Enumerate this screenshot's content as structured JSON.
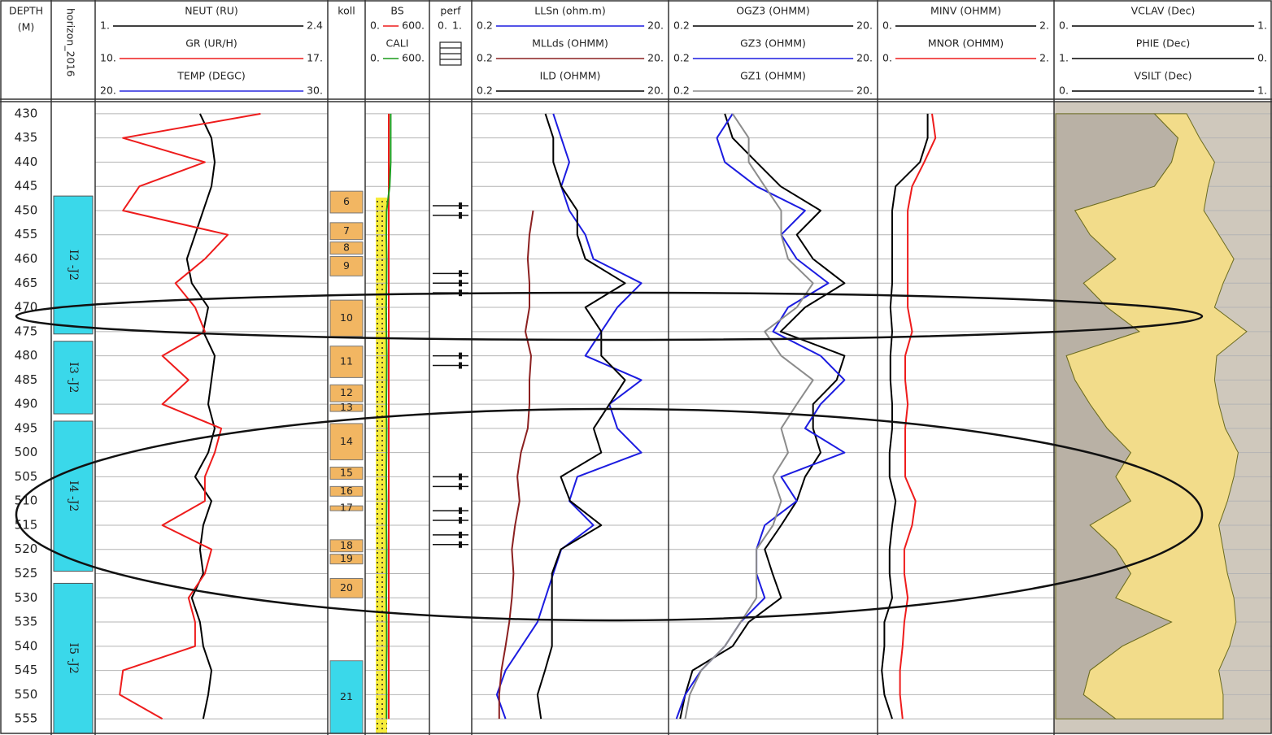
{
  "chart_data": {
    "type": "well-log",
    "ylabel": [
      "DEPTH",
      "(M)"
    ],
    "ylim": [
      427.5,
      558
    ],
    "yticks": [
      430,
      435,
      440,
      445,
      450,
      455,
      460,
      465,
      470,
      475,
      480,
      485,
      490,
      495,
      500,
      505,
      510,
      515,
      520,
      525,
      530,
      535,
      540,
      545,
      550,
      555
    ],
    "grid": true,
    "x": [
      430,
      435,
      440,
      445,
      450,
      455,
      460,
      465,
      470,
      475,
      480,
      485,
      490,
      495,
      500,
      505,
      510,
      515,
      520,
      525,
      530,
      535,
      540,
      545,
      550,
      555
    ],
    "zones_title": "horizon_2016",
    "zones": [
      {
        "label": "I2 -J2",
        "top": 447,
        "base": 475.5,
        "color": "#3ad8ea"
      },
      {
        "label": "I3 -J2",
        "top": 477,
        "base": 492,
        "color": "#3ad8ea"
      },
      {
        "label": "I4 -J2",
        "top": 493.5,
        "base": 524.5,
        "color": "#3ad8ea"
      },
      {
        "label": "I5 -J2",
        "top": 527,
        "base": 558,
        "color": "#3ad8ea"
      }
    ],
    "intervals_title": "koll",
    "intervals": [
      {
        "label": "6",
        "top": 446,
        "base": 450.5,
        "color": "#f2b662"
      },
      {
        "label": "7",
        "top": 452.5,
        "base": 456,
        "color": "#f2b662"
      },
      {
        "label": "8",
        "top": 456.5,
        "base": 459,
        "color": "#f2b662"
      },
      {
        "label": "9",
        "top": 459.5,
        "base": 463.5,
        "color": "#f2b662"
      },
      {
        "label": "10",
        "top": 468.5,
        "base": 476,
        "color": "#f2b662"
      },
      {
        "label": "11",
        "top": 478,
        "base": 484.5,
        "color": "#f2b662"
      },
      {
        "label": "12",
        "top": 486,
        "base": 489.5,
        "color": "#f2b662"
      },
      {
        "label": "13",
        "top": 490,
        "base": 491.5,
        "color": "#f2b662"
      },
      {
        "label": "14",
        "top": 494,
        "base": 501.5,
        "color": "#f2b662"
      },
      {
        "label": "15",
        "top": 503,
        "base": 505.5,
        "color": "#f2b662"
      },
      {
        "label": "16",
        "top": 507,
        "base": 509,
        "color": "#f2b662"
      },
      {
        "label": "17",
        "top": 511,
        "base": 512,
        "color": "#f2b662"
      },
      {
        "label": "18",
        "top": 518,
        "base": 520.5,
        "color": "#f2b662"
      },
      {
        "label": "19",
        "top": 521,
        "base": 523,
        "color": "#f2b662"
      },
      {
        "label": "20",
        "top": 526,
        "base": 530,
        "color": "#f2b662"
      },
      {
        "label": "21",
        "top": 543,
        "base": 558,
        "color": "#3ad8ea"
      }
    ],
    "perforations_title": "perf",
    "perforations_xticks": [
      {
        "value": 0,
        "label": "0."
      },
      {
        "value": 1,
        "label": "1."
      }
    ],
    "perforations": [
      449,
      451,
      463,
      465,
      467,
      480,
      482,
      505,
      507,
      512,
      514,
      517,
      519
    ],
    "tracks": [
      {
        "log": false,
        "series": [
          {
            "name": "NEUT (RU)",
            "color": "#000000",
            "xlim": [
              1,
              2.4
            ],
            "xticks": [
              {
                "value": 1,
                "label": "1."
              },
              2.4
            ],
            "values": [
              1.63,
              1.7,
              1.72,
              1.7,
              1.65,
              1.6,
              1.55,
              1.58,
              1.68,
              1.65,
              1.72,
              1.7,
              1.68,
              1.72,
              1.68,
              1.6,
              1.7,
              1.65,
              1.63,
              1.65,
              1.58,
              1.63,
              1.65,
              1.7,
              1.68,
              1.65
            ]
          },
          {
            "name": "GR (UR/H)",
            "color": "#ee1c1c",
            "xlim": [
              10,
              17
            ],
            "xticks": [
              {
                "value": 10,
                "label": "10."
              },
              {
                "value": 17,
                "label": "17."
              }
            ],
            "values": [
              15.0,
              10.8,
              13.3,
              11.3,
              10.8,
              14.0,
              13.3,
              12.4,
              13.0,
              13.3,
              12.0,
              12.8,
              12.0,
              13.8,
              13.6,
              13.3,
              13.3,
              12.0,
              13.5,
              13.3,
              12.8,
              13.0,
              13.0,
              10.8,
              10.7,
              12.0
            ]
          },
          {
            "name": "TEMP (DEGC)",
            "color": "#2a2ae0",
            "xlim": [
              20,
              30
            ],
            "xticks": [
              {
                "value": 20,
                "label": "20."
              },
              {
                "value": 30,
                "label": "30."
              }
            ]
          }
        ]
      },
      {
        "log": false,
        "series": [
          {
            "name": "BS",
            "color": "#ee1c1c",
            "xlim": [
              0,
              600
            ],
            "xticks": [
              {
                "value": 0,
                "label": "0."
              },
              {
                "value": 600,
                "label": "600."
              }
            ],
            "values": [
              216,
              216,
              216,
              216,
              216,
              216,
              216,
              216,
              216,
              216,
              216,
              216,
              216,
              216,
              216,
              216,
              216,
              216,
              216,
              216,
              216,
              216,
              216,
              216,
              216,
              216
            ]
          },
          {
            "name": "CALI",
            "color": "#1a9a1a",
            "xlim": [
              0,
              600
            ],
            "xticks": [
              {
                "value": 0,
                "label": "0."
              },
              {
                "value": 600,
                "label": "600."
              }
            ],
            "values": [
              235,
              235,
              235,
              225,
              195,
              192,
              196,
              194,
              190,
              193,
              197,
              195,
              192,
              196,
              194,
              191,
              195,
              193,
              196,
              194,
              192,
              195,
              197,
              193,
              195,
              194
            ]
          }
        ]
      },
      {
        "log": true,
        "series": [
          {
            "name": "LLSn (ohm.m)",
            "color": "#1c1ce0",
            "xlim": [
              0.2,
              20
            ],
            "xticks": [
              0.2,
              {
                "value": 20,
                "label": "20."
              }
            ],
            "values": [
              1.34,
              1.62,
              1.96,
              1.62,
              1.96,
              2.87,
              3.48,
              10.9,
              6.15,
              4.2,
              2.87,
              10.9,
              5.08,
              6.15,
              10.9,
              2.37,
              1.96,
              3.48,
              1.62,
              1.34,
              1.11,
              0.92,
              0.63,
              0.43,
              0.35,
              0.43
            ]
          },
          {
            "name": "MLLds (OHMM)",
            "color": "#8b2020",
            "xlim": [
              0.2,
              20
            ],
            "xticks": [
              0.2,
              {
                "value": 20,
                "label": "20."
              }
            ],
            "values": [
              null,
              null,
              null,
              null,
              0.83,
              0.76,
              0.73,
              0.76,
              0.76,
              0.69,
              0.79,
              0.76,
              0.76,
              0.73,
              0.62,
              0.57,
              0.6,
              0.54,
              0.5,
              0.52,
              0.5,
              0.47,
              0.43,
              0.39,
              0.37,
              0.37
            ]
          },
          {
            "name": "ILD (OHMM)",
            "color": "#000000",
            "xlim": [
              0.2,
              20
            ],
            "xticks": [
              0.2,
              {
                "value": 20,
                "label": "20."
              }
            ],
            "values": [
              1.11,
              1.34,
              1.34,
              1.62,
              2.37,
              2.37,
              2.87,
              7.4,
              2.87,
              4.2,
              4.2,
              7.4,
              5.1,
              3.5,
              4.2,
              1.6,
              2.0,
              4.2,
              1.6,
              1.3,
              1.3,
              1.3,
              1.3,
              1.1,
              0.92,
              1.0
            ]
          }
        ]
      },
      {
        "log": true,
        "series": [
          {
            "name": "OGZ3 (OHMM)",
            "color": "#000000",
            "xlim": [
              0.2,
              20
            ],
            "xticks": [
              0.2,
              {
                "value": 20,
                "label": "20."
              }
            ],
            "values": [
              0.68,
              0.81,
              1.38,
              2.37,
              5.8,
              3.4,
              4.9,
              9.9,
              4.1,
              2.37,
              9.9,
              8.3,
              4.9,
              4.9,
              5.8,
              4.1,
              3.4,
              2.4,
              1.66,
              1.98,
              2.4,
              1.16,
              0.81,
              0.33,
              0.28,
              0.25
            ]
          },
          {
            "name": "GZ3 (OHMM)",
            "color": "#1c1ce0",
            "xlim": [
              0.2,
              20
            ],
            "xticks": [
              0.2,
              {
                "value": 20,
                "label": "20."
              }
            ],
            "values": [
              0.81,
              0.57,
              0.68,
              1.38,
              4.1,
              2.4,
              3.4,
              6.9,
              2.8,
              2.0,
              5.8,
              9.9,
              5.8,
              4.1,
              9.9,
              2.4,
              3.4,
              1.66,
              1.38,
              1.38,
              1.66,
              0.97,
              0.68,
              0.4,
              0.28,
              0.23
            ]
          },
          {
            "name": "GZ1 (OHMM)",
            "color": "#8c8c8c",
            "xlim": [
              0.2,
              20
            ],
            "xticks": [
              0.2,
              {
                "value": 20,
                "label": "20."
              }
            ],
            "values": [
              0.81,
              1.16,
              1.16,
              1.66,
              2.4,
              2.4,
              2.8,
              4.9,
              3.4,
              1.66,
              2.4,
              4.9,
              3.4,
              2.4,
              2.8,
              2.0,
              2.4,
              2.0,
              1.38,
              1.38,
              1.38,
              0.97,
              0.68,
              0.4,
              0.31,
              0.28
            ]
          }
        ]
      },
      {
        "log": false,
        "series": [
          {
            "name": "MINV (OHMM)",
            "color": "#000000",
            "xlim": [
              0,
              2
            ],
            "xticks": [
              {
                "value": 0,
                "label": "0."
              },
              {
                "value": 2,
                "label": "2."
              }
            ],
            "values": [
              0.56,
              0.56,
              0.47,
              0.19,
              0.15,
              0.15,
              0.15,
              0.15,
              0.13,
              0.15,
              0.13,
              0.13,
              0.15,
              0.15,
              0.12,
              0.12,
              0.19,
              0.15,
              0.12,
              0.12,
              0.15,
              0.06,
              0.06,
              0.03,
              0.06,
              0.15
            ]
          },
          {
            "name": "MNOR (OHMM)",
            "color": "#ee1c1c",
            "xlim": [
              0,
              2
            ],
            "xticks": [
              {
                "value": 0,
                "label": "0."
              },
              {
                "value": 2,
                "label": "2."
              }
            ],
            "values": [
              0.61,
              0.65,
              0.52,
              0.38,
              0.33,
              0.33,
              0.33,
              0.33,
              0.33,
              0.38,
              0.3,
              0.3,
              0.33,
              0.3,
              0.3,
              0.3,
              0.42,
              0.38,
              0.29,
              0.29,
              0.33,
              0.29,
              0.27,
              0.24,
              0.24,
              0.27
            ]
          }
        ]
      },
      {
        "log": false,
        "stacked": true,
        "series": [
          {
            "name": "VCLAV (Dec)",
            "color": "#000000",
            "fill": "#b9b1a5",
            "xlim": [
              0,
              1
            ],
            "xticks": [
              {
                "value": 0,
                "label": "0."
              },
              {
                "value": 1,
                "label": "1."
              }
            ],
            "values": [
              0.46,
              0.57,
              0.54,
              0.46,
              0.09,
              0.16,
              0.28,
              0.13,
              0.24,
              0.39,
              0.05,
              0.09,
              0.16,
              0.24,
              0.35,
              0.28,
              0.35,
              0.16,
              0.28,
              0.35,
              0.28,
              0.54,
              0.31,
              0.16,
              0.13,
              0.28
            ]
          },
          {
            "name": "PHIE (Dec)",
            "color": "#000000",
            "xlim": [
              1,
              0
            ],
            "xticks": [
              {
                "value": 1,
                "label": "1."
              },
              {
                "value": 0,
                "label": "0."
              }
            ]
          },
          {
            "name": "VSILT (Dec)",
            "color": "#000000",
            "fill": "#f2dc8a",
            "xlim": [
              0,
              1
            ],
            "xticks": [
              {
                "value": 0,
                "label": "0."
              },
              {
                "value": 1,
                "label": "1."
              }
            ],
            "values": [
              0.15,
              0.1,
              0.2,
              0.25,
              0.6,
              0.6,
              0.55,
              0.65,
              0.5,
              0.5,
              0.7,
              0.65,
              0.6,
              0.55,
              0.5,
              0.55,
              0.45,
              0.6,
              0.5,
              0.45,
              0.55,
              0.3,
              0.5,
              0.6,
              0.65,
              0.5
            ]
          }
        ]
      }
    ]
  }
}
